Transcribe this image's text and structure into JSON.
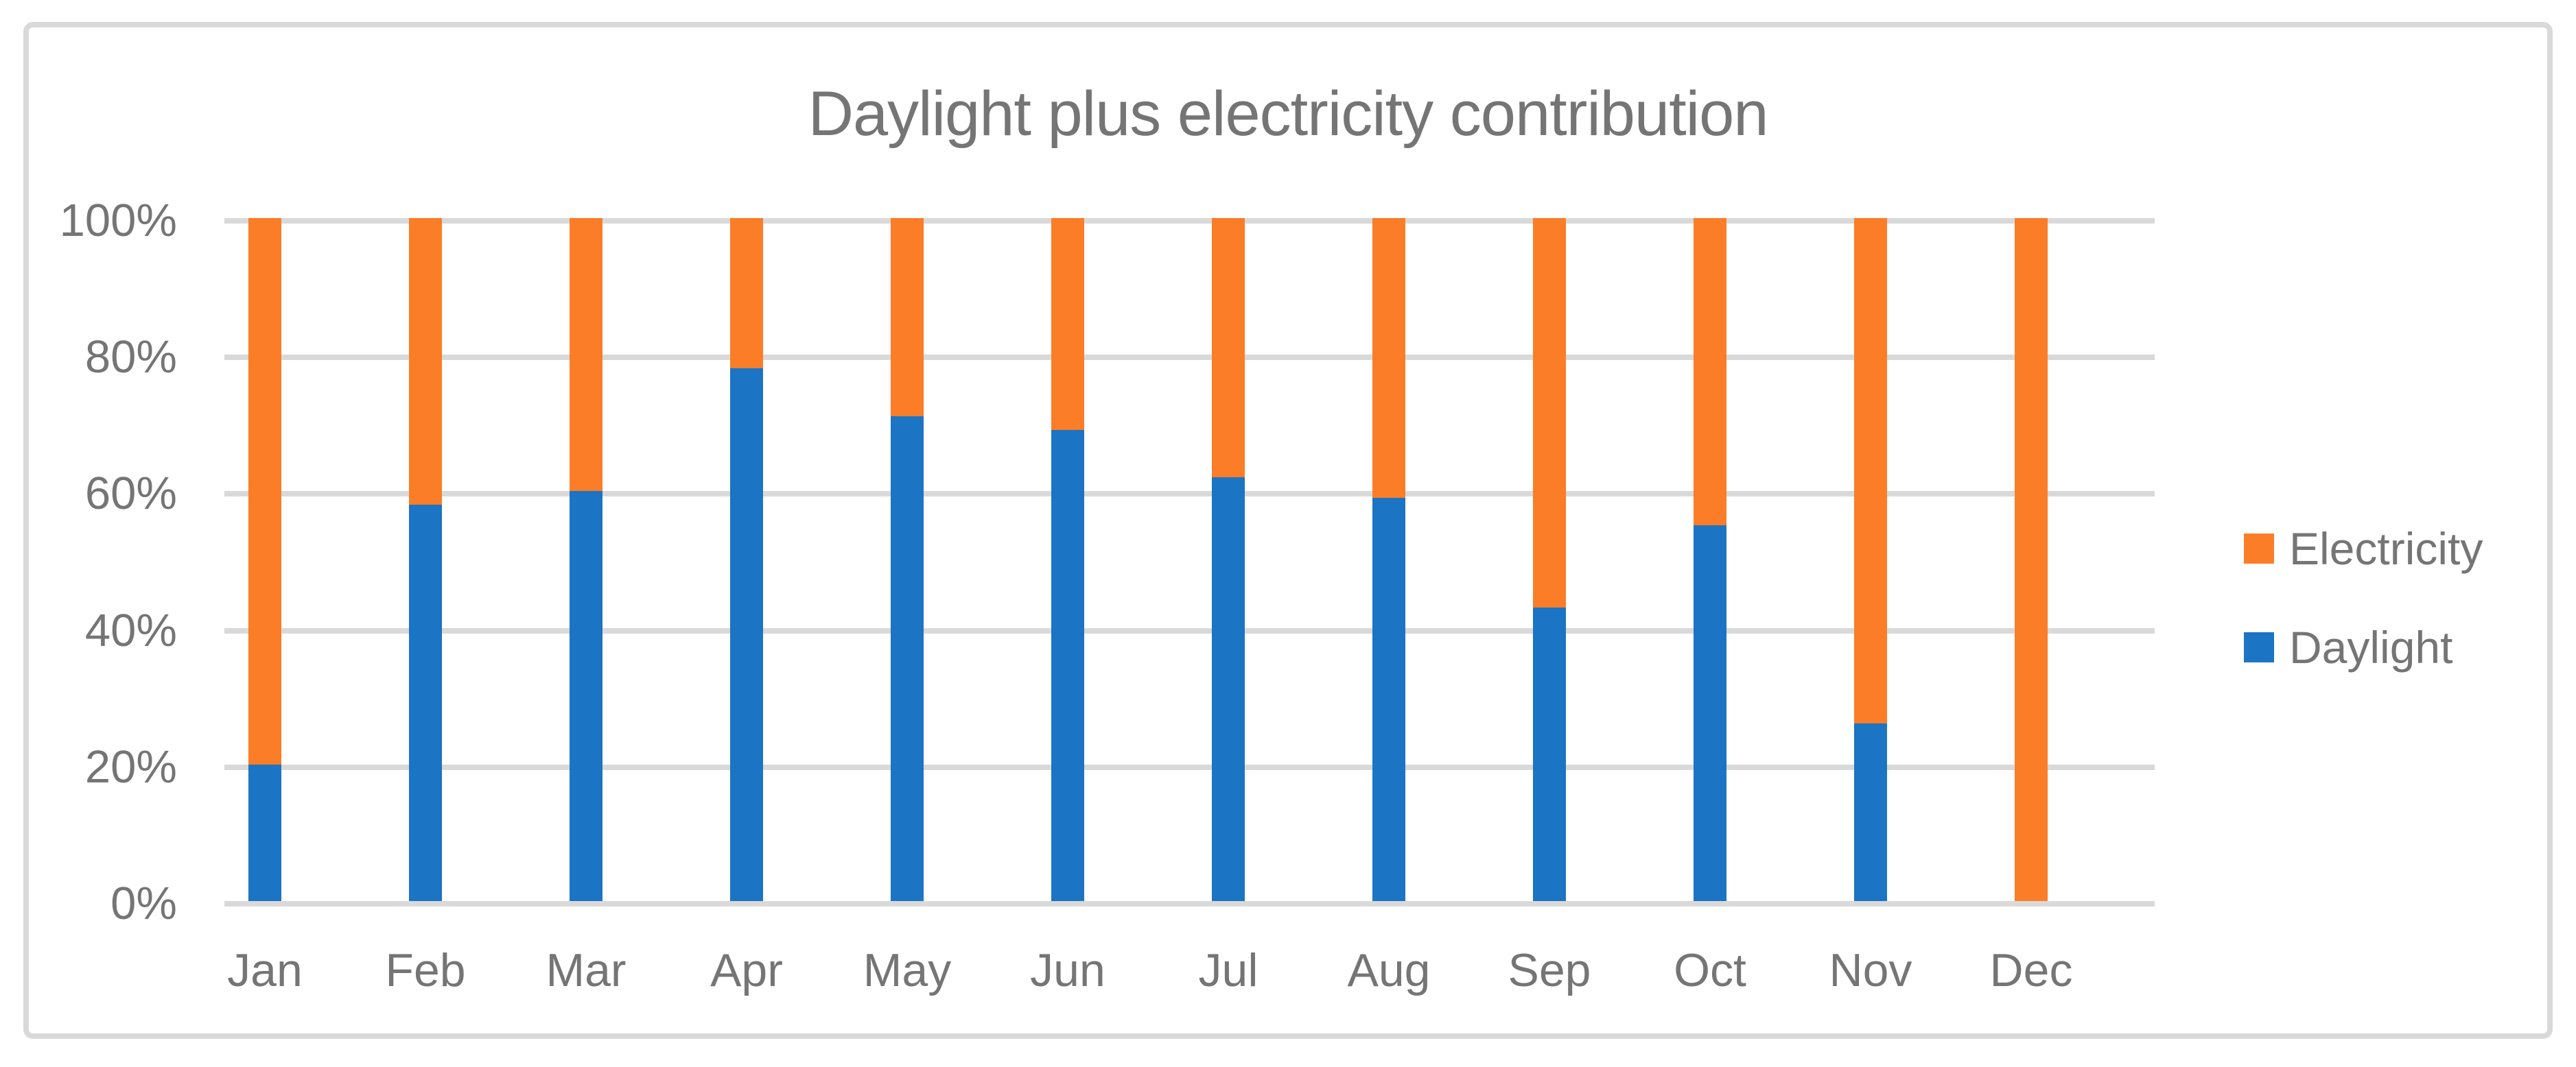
{
  "chart_data": {
    "type": "bar",
    "stacked": true,
    "percent_stacked": true,
    "title": "Daylight plus electricity contribution",
    "categories": [
      "Jan",
      "Feb",
      "Mar",
      "Apr",
      "May",
      "Jun",
      "Jul",
      "Aug",
      "Sep",
      "Oct",
      "Nov",
      "Dec"
    ],
    "series": [
      {
        "name": "Daylight",
        "color": "#1B74C4",
        "values": [
          20,
          58,
          60,
          78,
          71,
          69,
          62,
          59,
          43,
          55,
          26,
          0
        ]
      },
      {
        "name": "Electricity",
        "color": "#FB7D27",
        "values": [
          80,
          42,
          40,
          22,
          29,
          31,
          38,
          41,
          57,
          45,
          74,
          100
        ]
      }
    ],
    "y_axis": {
      "ticks": [
        "100%",
        "80%",
        "60%",
        "40%",
        "20%",
        "0%"
      ],
      "min": 0,
      "max": 100,
      "unit": "%"
    },
    "x_axis": {
      "label": ""
    },
    "legend": {
      "position": "right",
      "order": [
        "Electricity",
        "Daylight"
      ]
    },
    "grid": true,
    "colors": {
      "gridline": "#D9D9D9",
      "frame_border": "#D9D9D9",
      "text": "#757575",
      "background": "#FFFFFF"
    }
  }
}
